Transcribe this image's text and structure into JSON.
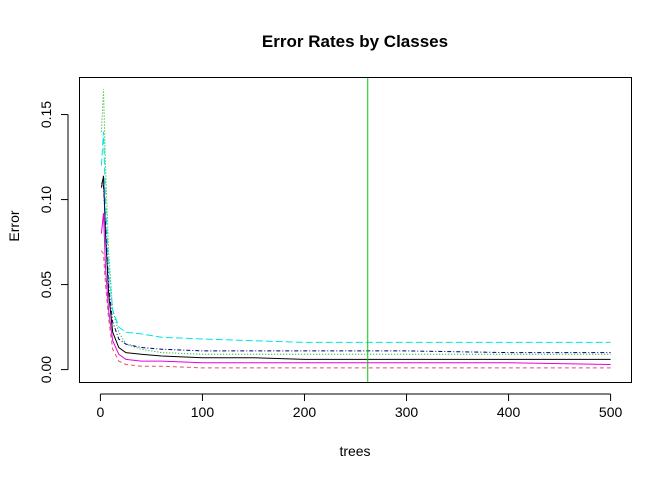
{
  "chart_data": {
    "type": "line",
    "title": "Error Rates by Classes",
    "xlabel": "trees",
    "ylabel": "Error",
    "xlim": [
      0,
      500
    ],
    "ylim": [
      0,
      0.16
    ],
    "x_ticks": [
      "0",
      "100",
      "200",
      "300",
      "400",
      "500"
    ],
    "y_ticks": [
      "0.00",
      "0.05",
      "0.10",
      "0.15"
    ],
    "grid": false,
    "vline": {
      "x": 262,
      "color": "#00cd00"
    },
    "series": [
      {
        "color": "#000000",
        "dash": "solid",
        "x": [
          1,
          3,
          5,
          8,
          12,
          18,
          25,
          40,
          60,
          100,
          150,
          200,
          262,
          300,
          400,
          500
        ],
        "values": [
          0.107,
          0.114,
          0.08,
          0.045,
          0.022,
          0.013,
          0.01,
          0.009,
          0.008,
          0.007,
          0.007,
          0.006,
          0.006,
          0.006,
          0.006,
          0.006
        ]
      },
      {
        "color": "#df536b",
        "dash": "dashed",
        "x": [
          1,
          3,
          5,
          8,
          12,
          18,
          25,
          40,
          60,
          100,
          150,
          200,
          262,
          300,
          400,
          500
        ],
        "values": [
          0.07,
          0.068,
          0.05,
          0.03,
          0.012,
          0.005,
          0.003,
          0.002,
          0.002,
          0.001,
          0.001,
          0.001,
          0.001,
          0.001,
          0.001,
          0.001
        ]
      },
      {
        "color": "#00aa00",
        "dash": "dotted",
        "x": [
          1,
          3,
          5,
          8,
          12,
          18,
          25,
          40,
          60,
          100,
          150,
          200,
          262,
          300,
          400,
          500
        ],
        "values": [
          0.14,
          0.165,
          0.12,
          0.07,
          0.035,
          0.022,
          0.015,
          0.012,
          0.01,
          0.009,
          0.009,
          0.009,
          0.009,
          0.009,
          0.009,
          0.009
        ]
      },
      {
        "color": "#000080",
        "dash": "dotdash",
        "x": [
          1,
          3,
          5,
          8,
          12,
          18,
          25,
          40,
          60,
          100,
          150,
          200,
          262,
          300,
          400,
          500
        ],
        "values": [
          0.11,
          0.108,
          0.085,
          0.05,
          0.028,
          0.018,
          0.015,
          0.013,
          0.012,
          0.011,
          0.011,
          0.011,
          0.011,
          0.011,
          0.01,
          0.01
        ]
      },
      {
        "color": "#00e5e5",
        "dash": "longdash",
        "x": [
          1,
          3,
          5,
          8,
          12,
          18,
          25,
          40,
          60,
          100,
          150,
          200,
          262,
          300,
          400,
          500
        ],
        "values": [
          0.12,
          0.14,
          0.1,
          0.06,
          0.035,
          0.025,
          0.022,
          0.021,
          0.019,
          0.018,
          0.017,
          0.016,
          0.016,
          0.016,
          0.016,
          0.016
        ]
      },
      {
        "color": "#e500e5",
        "dash": "solid",
        "x": [
          1,
          3,
          5,
          8,
          12,
          18,
          25,
          40,
          60,
          100,
          150,
          200,
          262,
          300,
          400,
          500
        ],
        "values": [
          0.08,
          0.092,
          0.06,
          0.035,
          0.017,
          0.009,
          0.006,
          0.005,
          0.005,
          0.004,
          0.004,
          0.004,
          0.004,
          0.004,
          0.004,
          0.003
        ]
      }
    ]
  }
}
